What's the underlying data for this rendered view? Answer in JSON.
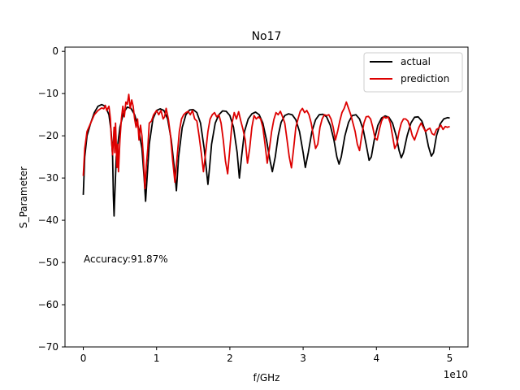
{
  "chart_data": {
    "type": "line",
    "title": "No17",
    "xlabel": "f/GHz",
    "ylabel": "S_Parameter",
    "x_offset_label": "1e10",
    "x_scale": 10000000000,
    "xlim": [
      -0.25,
      5.25
    ],
    "ylim": [
      -70,
      1
    ],
    "xticks": [
      0,
      1,
      2,
      3,
      4,
      5
    ],
    "xtick_labels": [
      "0",
      "1",
      "2",
      "3",
      "4",
      "5"
    ],
    "yticks": [
      0,
      -10,
      -20,
      -30,
      -40,
      -50,
      -60,
      -70
    ],
    "ytick_labels": [
      "0",
      "−10",
      "−20",
      "−30",
      "−40",
      "−50",
      "−60",
      "−70"
    ],
    "grid": false,
    "legend_position": "upper right",
    "annotation": "Accuracy:91.87%",
    "series": [
      {
        "name": "actual",
        "color": "#000000",
        "points": [
          [
            0,
            -34
          ],
          [
            0.02,
            -25
          ],
          [
            0.05,
            -20
          ],
          [
            0.1,
            -17
          ],
          [
            0.15,
            -14.5
          ],
          [
            0.2,
            -13
          ],
          [
            0.25,
            -12.6
          ],
          [
            0.3,
            -13
          ],
          [
            0.35,
            -15
          ],
          [
            0.38,
            -19
          ],
          [
            0.4,
            -25
          ],
          [
            0.41,
            -34
          ],
          [
            0.42,
            -39
          ],
          [
            0.43,
            -34
          ],
          [
            0.45,
            -25
          ],
          [
            0.5,
            -18
          ],
          [
            0.55,
            -14.5
          ],
          [
            0.6,
            -13.2
          ],
          [
            0.65,
            -13.5
          ],
          [
            0.7,
            -15
          ],
          [
            0.75,
            -18
          ],
          [
            0.8,
            -23
          ],
          [
            0.83,
            -30
          ],
          [
            0.85,
            -35.5
          ],
          [
            0.87,
            -30
          ],
          [
            0.9,
            -22
          ],
          [
            0.95,
            -16
          ],
          [
            1.0,
            -14
          ],
          [
            1.05,
            -13.6
          ],
          [
            1.1,
            -14
          ],
          [
            1.15,
            -16
          ],
          [
            1.2,
            -21
          ],
          [
            1.25,
            -29
          ],
          [
            1.27,
            -33
          ],
          [
            1.3,
            -25
          ],
          [
            1.35,
            -18
          ],
          [
            1.4,
            -15
          ],
          [
            1.45,
            -13.9
          ],
          [
            1.5,
            -13.8
          ],
          [
            1.55,
            -14.5
          ],
          [
            1.6,
            -17
          ],
          [
            1.65,
            -23
          ],
          [
            1.7,
            -31.5
          ],
          [
            1.72,
            -28
          ],
          [
            1.75,
            -22
          ],
          [
            1.8,
            -17
          ],
          [
            1.85,
            -15
          ],
          [
            1.9,
            -14.1
          ],
          [
            1.95,
            -14.2
          ],
          [
            2.0,
            -15.2
          ],
          [
            2.05,
            -18
          ],
          [
            2.1,
            -24
          ],
          [
            2.13,
            -30
          ],
          [
            2.16,
            -25
          ],
          [
            2.2,
            -19
          ],
          [
            2.25,
            -16
          ],
          [
            2.3,
            -14.8
          ],
          [
            2.35,
            -14.4
          ],
          [
            2.4,
            -15
          ],
          [
            2.45,
            -17
          ],
          [
            2.5,
            -21
          ],
          [
            2.55,
            -26
          ],
          [
            2.58,
            -28.5
          ],
          [
            2.62,
            -25
          ],
          [
            2.66,
            -20
          ],
          [
            2.7,
            -16.8
          ],
          [
            2.75,
            -15.2
          ],
          [
            2.8,
            -14.8
          ],
          [
            2.85,
            -15
          ],
          [
            2.9,
            -16.2
          ],
          [
            2.95,
            -19
          ],
          [
            3.0,
            -24
          ],
          [
            3.03,
            -27.5
          ],
          [
            3.07,
            -24
          ],
          [
            3.12,
            -19
          ],
          [
            3.17,
            -16.2
          ],
          [
            3.22,
            -15
          ],
          [
            3.27,
            -14.9
          ],
          [
            3.32,
            -15.5
          ],
          [
            3.37,
            -17.5
          ],
          [
            3.42,
            -21
          ],
          [
            3.46,
            -25
          ],
          [
            3.49,
            -26.7
          ],
          [
            3.52,
            -25
          ],
          [
            3.57,
            -20
          ],
          [
            3.62,
            -16.8
          ],
          [
            3.67,
            -15.2
          ],
          [
            3.72,
            -15
          ],
          [
            3.77,
            -16
          ],
          [
            3.82,
            -18.5
          ],
          [
            3.86,
            -22
          ],
          [
            3.9,
            -25.8
          ],
          [
            3.93,
            -25
          ],
          [
            3.97,
            -21
          ],
          [
            4.02,
            -17.5
          ],
          [
            4.07,
            -15.8
          ],
          [
            4.12,
            -15.3
          ],
          [
            4.17,
            -15.6
          ],
          [
            4.22,
            -17
          ],
          [
            4.27,
            -20
          ],
          [
            4.31,
            -23.5
          ],
          [
            4.34,
            -25.2
          ],
          [
            4.37,
            -24
          ],
          [
            4.42,
            -20
          ],
          [
            4.47,
            -17
          ],
          [
            4.52,
            -15.6
          ],
          [
            4.57,
            -15.5
          ],
          [
            4.62,
            -16.5
          ],
          [
            4.67,
            -19
          ],
          [
            4.71,
            -22.5
          ],
          [
            4.75,
            -24.8
          ],
          [
            4.78,
            -24
          ],
          [
            4.82,
            -20
          ],
          [
            4.87,
            -17.2
          ],
          [
            4.92,
            -16
          ],
          [
            4.97,
            -15.7
          ],
          [
            5.0,
            -15.8
          ]
        ]
      },
      {
        "name": "prediction",
        "color": "#dd0000",
        "points": [
          [
            0,
            -29.5
          ],
          [
            0.02,
            -23
          ],
          [
            0.05,
            -19
          ],
          [
            0.1,
            -17
          ],
          [
            0.15,
            -15
          ],
          [
            0.2,
            -14
          ],
          [
            0.25,
            -13.4
          ],
          [
            0.28,
            -13.6
          ],
          [
            0.3,
            -12.8
          ],
          [
            0.32,
            -14
          ],
          [
            0.35,
            -13
          ],
          [
            0.37,
            -16
          ],
          [
            0.38,
            -20
          ],
          [
            0.4,
            -24.5
          ],
          [
            0.42,
            -18
          ],
          [
            0.43,
            -24
          ],
          [
            0.44,
            -17
          ],
          [
            0.46,
            -27.5
          ],
          [
            0.47,
            -22
          ],
          [
            0.48,
            -28.5
          ],
          [
            0.5,
            -21
          ],
          [
            0.52,
            -16
          ],
          [
            0.54,
            -13
          ],
          [
            0.56,
            -15.5
          ],
          [
            0.58,
            -12
          ],
          [
            0.6,
            -12.5
          ],
          [
            0.62,
            -10.2
          ],
          [
            0.64,
            -13.5
          ],
          [
            0.66,
            -11.5
          ],
          [
            0.68,
            -13
          ],
          [
            0.7,
            -16
          ],
          [
            0.72,
            -18
          ],
          [
            0.74,
            -16
          ],
          [
            0.76,
            -21
          ],
          [
            0.78,
            -17.5
          ],
          [
            0.8,
            -20
          ],
          [
            0.82,
            -25
          ],
          [
            0.84,
            -32.5
          ],
          [
            0.86,
            -27
          ],
          [
            0.88,
            -23
          ],
          [
            0.9,
            -17
          ],
          [
            0.93,
            -16.5
          ],
          [
            0.96,
            -15
          ],
          [
            1.0,
            -14
          ],
          [
            1.03,
            -15
          ],
          [
            1.06,
            -14
          ],
          [
            1.09,
            -16
          ],
          [
            1.11,
            -15.5
          ],
          [
            1.13,
            -13.5
          ],
          [
            1.16,
            -16
          ],
          [
            1.19,
            -20
          ],
          [
            1.22,
            -26
          ],
          [
            1.25,
            -31
          ],
          [
            1.28,
            -25
          ],
          [
            1.31,
            -19
          ],
          [
            1.34,
            -16
          ],
          [
            1.37,
            -15
          ],
          [
            1.4,
            -14.5
          ],
          [
            1.43,
            -14.2
          ],
          [
            1.46,
            -15
          ],
          [
            1.49,
            -14
          ],
          [
            1.52,
            -16
          ],
          [
            1.55,
            -16.5
          ],
          [
            1.58,
            -20
          ],
          [
            1.61,
            -24
          ],
          [
            1.64,
            -28.5
          ],
          [
            1.67,
            -24
          ],
          [
            1.7,
            -19
          ],
          [
            1.73,
            -16
          ],
          [
            1.76,
            -15
          ],
          [
            1.79,
            -14.5
          ],
          [
            1.82,
            -15.5
          ],
          [
            1.85,
            -15
          ],
          [
            1.88,
            -17
          ],
          [
            1.91,
            -21
          ],
          [
            1.94,
            -26
          ],
          [
            1.97,
            -29
          ],
          [
            2.0,
            -23
          ],
          [
            2.03,
            -17
          ],
          [
            2.06,
            -14.5
          ],
          [
            2.09,
            -16
          ],
          [
            2.12,
            -14.3
          ],
          [
            2.15,
            -16.5
          ],
          [
            2.18,
            -18.5
          ],
          [
            2.21,
            -21
          ],
          [
            2.24,
            -26.5
          ],
          [
            2.27,
            -23
          ],
          [
            2.3,
            -18
          ],
          [
            2.33,
            -15.2
          ],
          [
            2.36,
            -16
          ],
          [
            2.39,
            -15.5
          ],
          [
            2.42,
            -16
          ],
          [
            2.45,
            -18
          ],
          [
            2.48,
            -22
          ],
          [
            2.51,
            -26.5
          ],
          [
            2.54,
            -23
          ],
          [
            2.57,
            -19
          ],
          [
            2.6,
            -16.2
          ],
          [
            2.63,
            -14.5
          ],
          [
            2.66,
            -15
          ],
          [
            2.69,
            -14.2
          ],
          [
            2.72,
            -15.5
          ],
          [
            2.75,
            -17
          ],
          [
            2.78,
            -21
          ],
          [
            2.81,
            -25
          ],
          [
            2.84,
            -27.6
          ],
          [
            2.87,
            -23
          ],
          [
            2.9,
            -18
          ],
          [
            2.93,
            -16
          ],
          [
            2.96,
            -14.2
          ],
          [
            2.99,
            -13.5
          ],
          [
            3.02,
            -14.5
          ],
          [
            3.05,
            -14
          ],
          [
            3.08,
            -15
          ],
          [
            3.11,
            -17
          ],
          [
            3.14,
            -20
          ],
          [
            3.17,
            -23
          ],
          [
            3.2,
            -22
          ],
          [
            3.23,
            -18
          ],
          [
            3.26,
            -16
          ],
          [
            3.29,
            -15
          ],
          [
            3.32,
            -15.2
          ],
          [
            3.35,
            -15
          ],
          [
            3.38,
            -16
          ],
          [
            3.41,
            -18
          ],
          [
            3.44,
            -21
          ],
          [
            3.47,
            -19
          ],
          [
            3.5,
            -16.5
          ],
          [
            3.53,
            -14.5
          ],
          [
            3.56,
            -13.5
          ],
          [
            3.59,
            -12
          ],
          [
            3.62,
            -13.5
          ],
          [
            3.65,
            -15
          ],
          [
            3.68,
            -17
          ],
          [
            3.71,
            -19
          ],
          [
            3.74,
            -22
          ],
          [
            3.77,
            -23.5
          ],
          [
            3.8,
            -20
          ],
          [
            3.83,
            -17
          ],
          [
            3.86,
            -15.5
          ],
          [
            3.89,
            -15.4
          ],
          [
            3.92,
            -16
          ],
          [
            3.95,
            -18
          ],
          [
            3.98,
            -20.5
          ],
          [
            4.01,
            -21
          ],
          [
            4.04,
            -18.5
          ],
          [
            4.07,
            -16.5
          ],
          [
            4.1,
            -15.5
          ],
          [
            4.13,
            -15.8
          ],
          [
            4.16,
            -15.5
          ],
          [
            4.19,
            -17
          ],
          [
            4.22,
            -20
          ],
          [
            4.25,
            -23
          ],
          [
            4.28,
            -22
          ],
          [
            4.31,
            -19
          ],
          [
            4.34,
            -17
          ],
          [
            4.37,
            -16
          ],
          [
            4.4,
            -16
          ],
          [
            4.43,
            -16.5
          ],
          [
            4.46,
            -18
          ],
          [
            4.49,
            -20
          ],
          [
            4.52,
            -21
          ],
          [
            4.55,
            -19.5
          ],
          [
            4.58,
            -18
          ],
          [
            4.61,
            -17
          ],
          [
            4.64,
            -18
          ],
          [
            4.67,
            -19
          ],
          [
            4.7,
            -18.5
          ],
          [
            4.73,
            -18.2
          ],
          [
            4.76,
            -19.5
          ],
          [
            4.79,
            -19.8
          ],
          [
            4.82,
            -18.5
          ],
          [
            4.85,
            -18.2
          ],
          [
            4.88,
            -17.5
          ],
          [
            4.91,
            -18.5
          ],
          [
            4.94,
            -17.8
          ],
          [
            4.97,
            -18
          ],
          [
            5.0,
            -17.8
          ]
        ]
      }
    ]
  }
}
